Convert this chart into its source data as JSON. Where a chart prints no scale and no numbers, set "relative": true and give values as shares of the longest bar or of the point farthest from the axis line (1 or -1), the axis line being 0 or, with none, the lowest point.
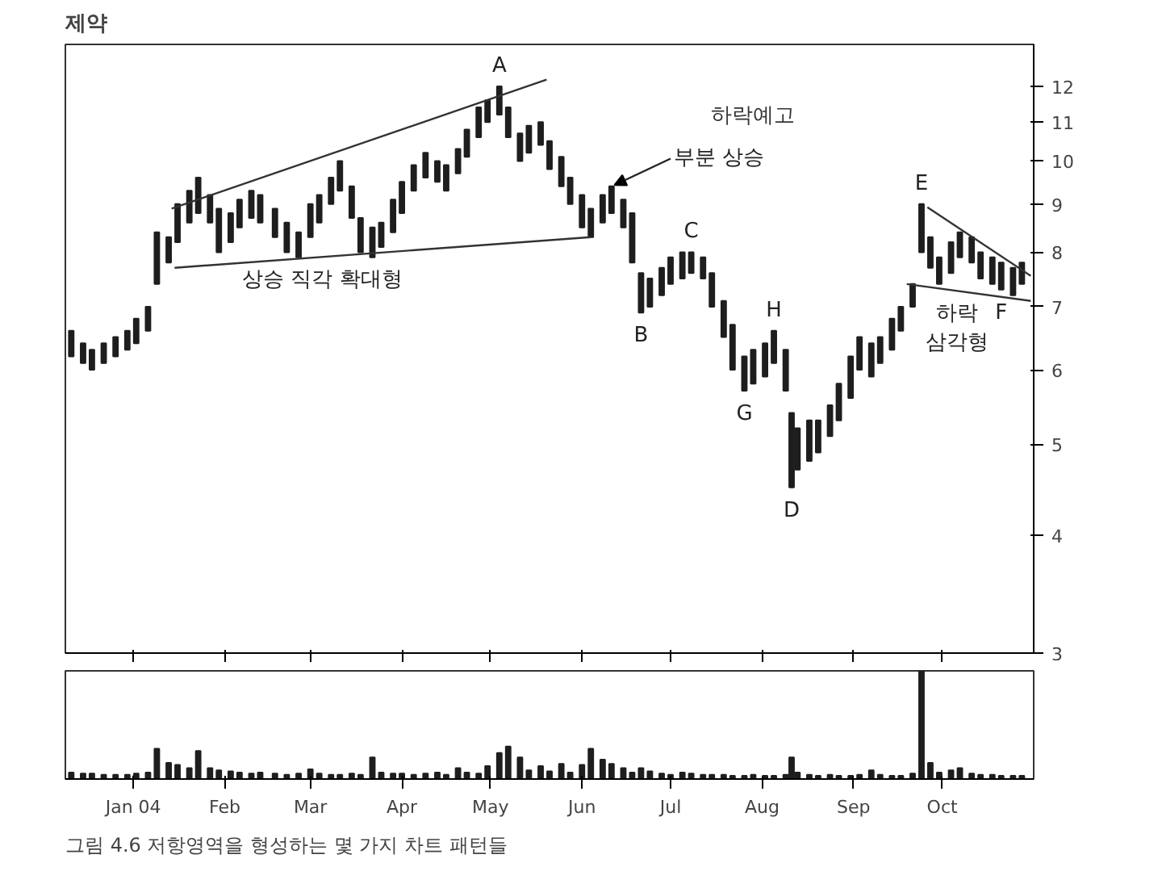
{
  "chart_data": [
    {
      "type": "bar",
      "title": "제약",
      "x": [
        "2003-12-11",
        "2003-12-15",
        "2003-12-18",
        "2003-12-22",
        "2003-12-26",
        "2003-12-30",
        "2004-01-02",
        "2004-01-06",
        "2004-01-09",
        "2004-01-13",
        "2004-01-16",
        "2004-01-20",
        "2004-01-23",
        "2004-01-27",
        "2004-01-30",
        "2004-02-03",
        "2004-02-06",
        "2004-02-10",
        "2004-02-13",
        "2004-02-18",
        "2004-02-22",
        "2004-02-26",
        "2004-03-01",
        "2004-03-04",
        "2004-03-08",
        "2004-03-11",
        "2004-03-15",
        "2004-03-18",
        "2004-03-22",
        "2004-03-25",
        "2004-03-29",
        "2004-04-01",
        "2004-04-05",
        "2004-04-09",
        "2004-04-13",
        "2004-04-16",
        "2004-04-20",
        "2004-04-23",
        "2004-04-27",
        "2004-04-30",
        "2004-05-04",
        "2004-05-07",
        "2004-05-11",
        "2004-05-14",
        "2004-05-18",
        "2004-05-21",
        "2004-05-25",
        "2004-05-28",
        "2004-06-01",
        "2004-06-04",
        "2004-06-08",
        "2004-06-11",
        "2004-06-15",
        "2004-06-18",
        "2004-06-21",
        "2004-06-24",
        "2004-06-28",
        "2004-07-01",
        "2004-07-05",
        "2004-07-08",
        "2004-07-12",
        "2004-07-15",
        "2004-07-19",
        "2004-07-22",
        "2004-07-26",
        "2004-07-29",
        "2004-08-02",
        "2004-08-05",
        "2004-08-09",
        "2004-08-11",
        "2004-08-13",
        "2004-08-17",
        "2004-08-20",
        "2004-08-24",
        "2004-08-27",
        "2004-08-31",
        "2004-09-03",
        "2004-09-07",
        "2004-09-10",
        "2004-09-14",
        "2004-09-17",
        "2004-09-21",
        "2004-09-24",
        "2004-09-27",
        "2004-09-30",
        "2004-10-04",
        "2004-10-07",
        "2004-10-11",
        "2004-10-14",
        "2004-10-18",
        "2004-10-21",
        "2004-10-25",
        "2004-10-28"
      ],
      "base": [
        6.2,
        6.1,
        6.0,
        6.1,
        6.2,
        6.3,
        6.4,
        6.6,
        7.4,
        7.8,
        8.2,
        8.6,
        8.8,
        8.6,
        8.0,
        8.2,
        8.5,
        8.7,
        8.6,
        8.3,
        8.0,
        7.9,
        8.3,
        8.6,
        9.0,
        9.3,
        8.7,
        8.0,
        7.9,
        8.1,
        8.4,
        8.8,
        9.3,
        9.6,
        9.5,
        9.3,
        9.7,
        10.1,
        10.6,
        11.0,
        11.2,
        10.6,
        10.0,
        10.2,
        10.4,
        9.8,
        9.4,
        9.0,
        8.5,
        8.3,
        8.6,
        8.8,
        8.5,
        7.8,
        6.9,
        7.0,
        7.2,
        7.4,
        7.5,
        7.6,
        7.5,
        7.0,
        6.5,
        6.0,
        5.7,
        5.8,
        5.9,
        6.1,
        5.7,
        4.5,
        4.7,
        4.8,
        4.9,
        5.1,
        5.3,
        5.6,
        6.0,
        5.9,
        6.1,
        6.3,
        6.6,
        7.0,
        8.0,
        7.7,
        7.4,
        7.6,
        7.9,
        7.8,
        7.5,
        7.4,
        7.3,
        7.2,
        7.4
      ],
      "values": [
        0.4,
        0.3,
        0.3,
        0.3,
        0.3,
        0.3,
        0.4,
        0.4,
        1.0,
        0.5,
        0.8,
        0.7,
        0.8,
        0.6,
        0.9,
        0.6,
        0.6,
        0.6,
        0.6,
        0.6,
        0.6,
        0.5,
        0.7,
        0.6,
        0.6,
        0.7,
        0.7,
        0.7,
        0.6,
        0.5,
        0.7,
        0.7,
        0.6,
        0.6,
        0.5,
        0.6,
        0.6,
        0.7,
        0.8,
        0.6,
        0.8,
        0.8,
        0.7,
        0.7,
        0.6,
        0.7,
        0.7,
        0.6,
        0.7,
        0.6,
        0.6,
        0.6,
        0.6,
        1.0,
        0.7,
        0.5,
        0.5,
        0.5,
        0.5,
        0.4,
        0.4,
        0.6,
        0.6,
        0.7,
        0.5,
        0.5,
        0.5,
        0.5,
        0.6,
        0.9,
        0.5,
        0.5,
        0.4,
        0.4,
        0.5,
        0.6,
        0.5,
        0.5,
        0.4,
        0.5,
        0.4,
        0.4,
        1.0,
        0.6,
        0.5,
        0.6,
        0.5,
        0.5,
        0.5,
        0.5,
        0.5,
        0.5,
        0.4
      ],
      "color": "#1e1e1e",
      "series": [
        {
          "type": "line",
          "color": "#333333",
          "x": [
            "2004-01-14",
            "2004-05-20"
          ],
          "values": [
            8.9,
            12.2
          ]
        },
        {
          "type": "line",
          "color": "#333333",
          "x": [
            "2004-01-15",
            "2004-06-04"
          ],
          "values": [
            7.7,
            8.3
          ]
        },
        {
          "type": "line",
          "color": "#333333",
          "x": [
            "2004-09-26",
            "2004-10-31"
          ],
          "values": [
            8.93,
            7.55
          ]
        },
        {
          "type": "line",
          "color": "#333333",
          "x": [
            "2004-09-19",
            "2004-10-31"
          ],
          "values": [
            7.4,
            7.1
          ]
        }
      ],
      "log": "y",
      "ylim": [
        3,
        13.3
      ],
      "yticks": [
        3,
        4,
        5,
        6,
        7,
        8,
        9,
        10,
        11,
        12
      ],
      "xlim": [
        "2003-12-09",
        "2004-11-01"
      ],
      "xticks": [
        {
          "value": "2004-01-01",
          "label": null
        },
        {
          "value": "2004-02-01",
          "label": null
        },
        {
          "value": "2004-03-01",
          "label": null
        },
        {
          "value": "2004-04-01",
          "label": null
        },
        {
          "value": "2004-05-01",
          "label": null
        },
        {
          "value": "2004-06-01",
          "label": null
        },
        {
          "value": "2004-07-01",
          "label": null
        },
        {
          "value": "2004-08-01",
          "label": null
        },
        {
          "value": "2004-09-01",
          "label": null
        },
        {
          "value": "2004-10-01",
          "label": null
        }
      ],
      "grid": false,
      "tick_labels": "y",
      "annotations": [
        {
          "text": "A",
          "x": "2004-05-04",
          "y": 12.0
        },
        {
          "text": "B",
          "x": "2004-06-21",
          "y": 6.9
        },
        {
          "text": "C",
          "x": "2004-07-08",
          "y": 8.0
        },
        {
          "text": "D",
          "x": "2004-08-11",
          "y": 4.5
        },
        {
          "text": "E",
          "x": "2004-09-24",
          "y": 9.0
        },
        {
          "text": "F",
          "x": "2004-10-21",
          "y": 7.3
        },
        {
          "text": "G",
          "x": "2004-07-26",
          "y": 5.7
        },
        {
          "text": "H",
          "x": "2004-08-05",
          "y": 6.6
        },
        {
          "text": "상승 직각 확대형",
          "x": "2004-03-05",
          "y": 7.91
        },
        {
          "text": "부분 상승",
          "x": "2004-06-11",
          "y": 9.4
        },
        "하락예고",
        {
          "text": "하락\n삼각형",
          "x": "2004-10-06",
          "y": 7.28
        },
        "그림 4.6 저항영역을 형성하는 몇 가지 차트 패턴들"
      ]
    },
    {
      "type": "bar",
      "relative": true,
      "color": "#1e1e1e",
      "tick_labels": "x",
      "xlim": [
        "2003-12-09",
        "2004-11-01"
      ],
      "xticks": [
        {
          "value": "2004-01-01",
          "label": "Jan 04"
        },
        {
          "value": "2004-02-01",
          "label": "Feb"
        },
        {
          "value": "2004-03-01",
          "label": "Mar"
        },
        {
          "value": "2004-04-01",
          "label": "Apr"
        },
        {
          "value": "2004-05-01",
          "label": "May"
        },
        {
          "value": "2004-06-01",
          "label": "Jun"
        },
        {
          "value": "2004-07-01",
          "label": "Jul"
        },
        {
          "value": "2004-08-01",
          "label": "Aug"
        },
        {
          "value": "2004-09-01",
          "label": "Sep"
        },
        {
          "value": "2004-10-01",
          "label": "Oct"
        }
      ],
      "x": [
        "2003-12-11",
        "2003-12-15",
        "2003-12-18",
        "2003-12-22",
        "2003-12-26",
        "2003-12-30",
        "2004-01-02",
        "2004-01-06",
        "2004-01-09",
        "2004-01-13",
        "2004-01-16",
        "2004-01-20",
        "2004-01-23",
        "2004-01-27",
        "2004-01-30",
        "2004-02-03",
        "2004-02-06",
        "2004-02-10",
        "2004-02-13",
        "2004-02-18",
        "2004-02-22",
        "2004-02-26",
        "2004-03-01",
        "2004-03-04",
        "2004-03-08",
        "2004-03-11",
        "2004-03-15",
        "2004-03-18",
        "2004-03-22",
        "2004-03-25",
        "2004-03-29",
        "2004-04-01",
        "2004-04-05",
        "2004-04-09",
        "2004-04-13",
        "2004-04-16",
        "2004-04-20",
        "2004-04-23",
        "2004-04-27",
        "2004-04-30",
        "2004-05-04",
        "2004-05-07",
        "2004-05-11",
        "2004-05-14",
        "2004-05-18",
        "2004-05-21",
        "2004-05-25",
        "2004-05-28",
        "2004-06-01",
        "2004-06-04",
        "2004-06-08",
        "2004-06-11",
        "2004-06-15",
        "2004-06-18",
        "2004-06-21",
        "2004-06-24",
        "2004-06-28",
        "2004-07-01",
        "2004-07-05",
        "2004-07-08",
        "2004-07-12",
        "2004-07-15",
        "2004-07-19",
        "2004-07-22",
        "2004-07-26",
        "2004-07-29",
        "2004-08-02",
        "2004-08-05",
        "2004-08-09",
        "2004-08-11",
        "2004-08-13",
        "2004-08-17",
        "2004-08-20",
        "2004-08-24",
        "2004-08-27",
        "2004-08-31",
        "2004-09-03",
        "2004-09-07",
        "2004-09-10",
        "2004-09-14",
        "2004-09-17",
        "2004-09-21",
        "2004-09-24",
        "2004-09-27",
        "2004-09-30",
        "2004-10-04",
        "2004-10-07",
        "2004-10-11",
        "2004-10-14",
        "2004-10-18",
        "2004-10-21",
        "2004-10-25",
        "2004-10-28"
      ],
      "values": [
        0.06,
        0.05,
        0.05,
        0.04,
        0.04,
        0.04,
        0.05,
        0.06,
        0.28,
        0.15,
        0.13,
        0.1,
        0.26,
        0.1,
        0.08,
        0.07,
        0.06,
        0.05,
        0.06,
        0.05,
        0.04,
        0.05,
        0.09,
        0.05,
        0.04,
        0.04,
        0.05,
        0.04,
        0.2,
        0.06,
        0.05,
        0.05,
        0.04,
        0.05,
        0.06,
        0.04,
        0.1,
        0.06,
        0.05,
        0.12,
        0.24,
        0.3,
        0.2,
        0.08,
        0.12,
        0.07,
        0.14,
        0.06,
        0.13,
        0.28,
        0.18,
        0.14,
        0.1,
        0.06,
        0.1,
        0.07,
        0.05,
        0.04,
        0.06,
        0.05,
        0.04,
        0.04,
        0.04,
        0.03,
        0.03,
        0.04,
        0.03,
        0.03,
        0.04,
        0.2,
        0.06,
        0.04,
        0.03,
        0.04,
        0.03,
        0.03,
        0.04,
        0.08,
        0.04,
        0.03,
        0.03,
        0.05,
        1,
        0.15,
        0.06,
        0.08,
        0.1,
        0.05,
        0.04,
        0.04,
        0.03,
        0.03,
        0.03
      ]
    }
  ]
}
